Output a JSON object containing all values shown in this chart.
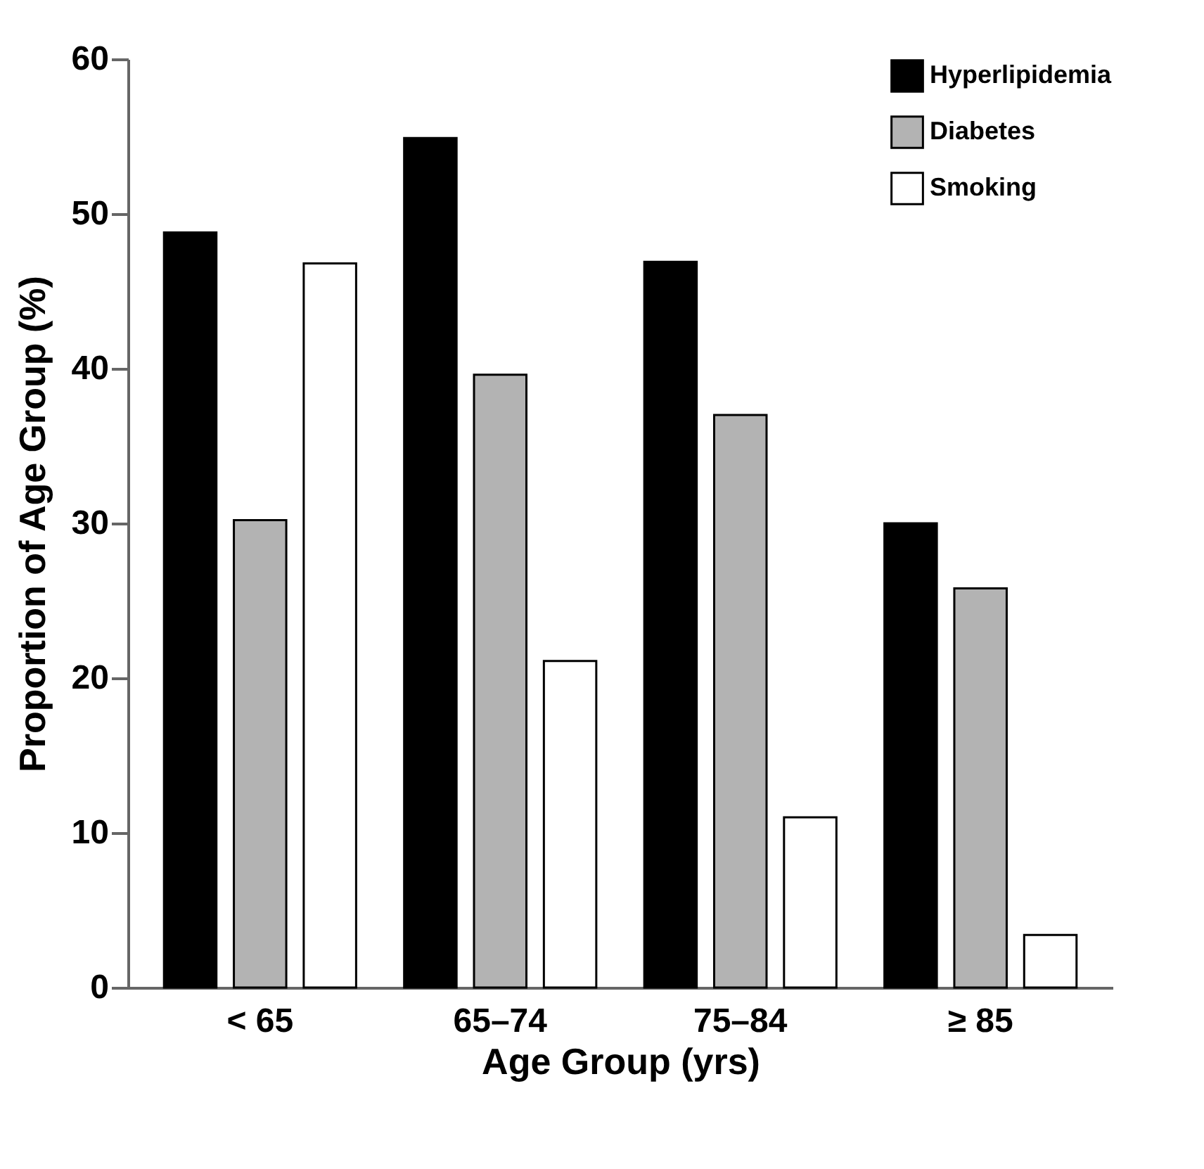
{
  "chart_data": {
    "type": "bar",
    "xlabel": "Age Group (yrs)",
    "ylabel": "Proportion of Age Group (%)",
    "categories": [
      "< 65",
      "65–74",
      "75–84",
      "≥ 85"
    ],
    "series": [
      {
        "name": "Hyperlipidemia",
        "color": "#000000",
        "values": [
          48.8,
          54.9,
          46.9,
          30.0
        ]
      },
      {
        "name": "Diabetes",
        "color": "#b3b3b3",
        "values": [
          30.2,
          39.6,
          37.0,
          25.8
        ]
      },
      {
        "name": "Smoking",
        "color": "#ffffff",
        "values": [
          46.8,
          21.1,
          11.0,
          3.4
        ]
      }
    ],
    "ylim": [
      0,
      60
    ],
    "yticks": [
      0,
      10,
      20,
      30,
      40,
      50,
      60
    ],
    "grid": false,
    "legend": "top right"
  }
}
